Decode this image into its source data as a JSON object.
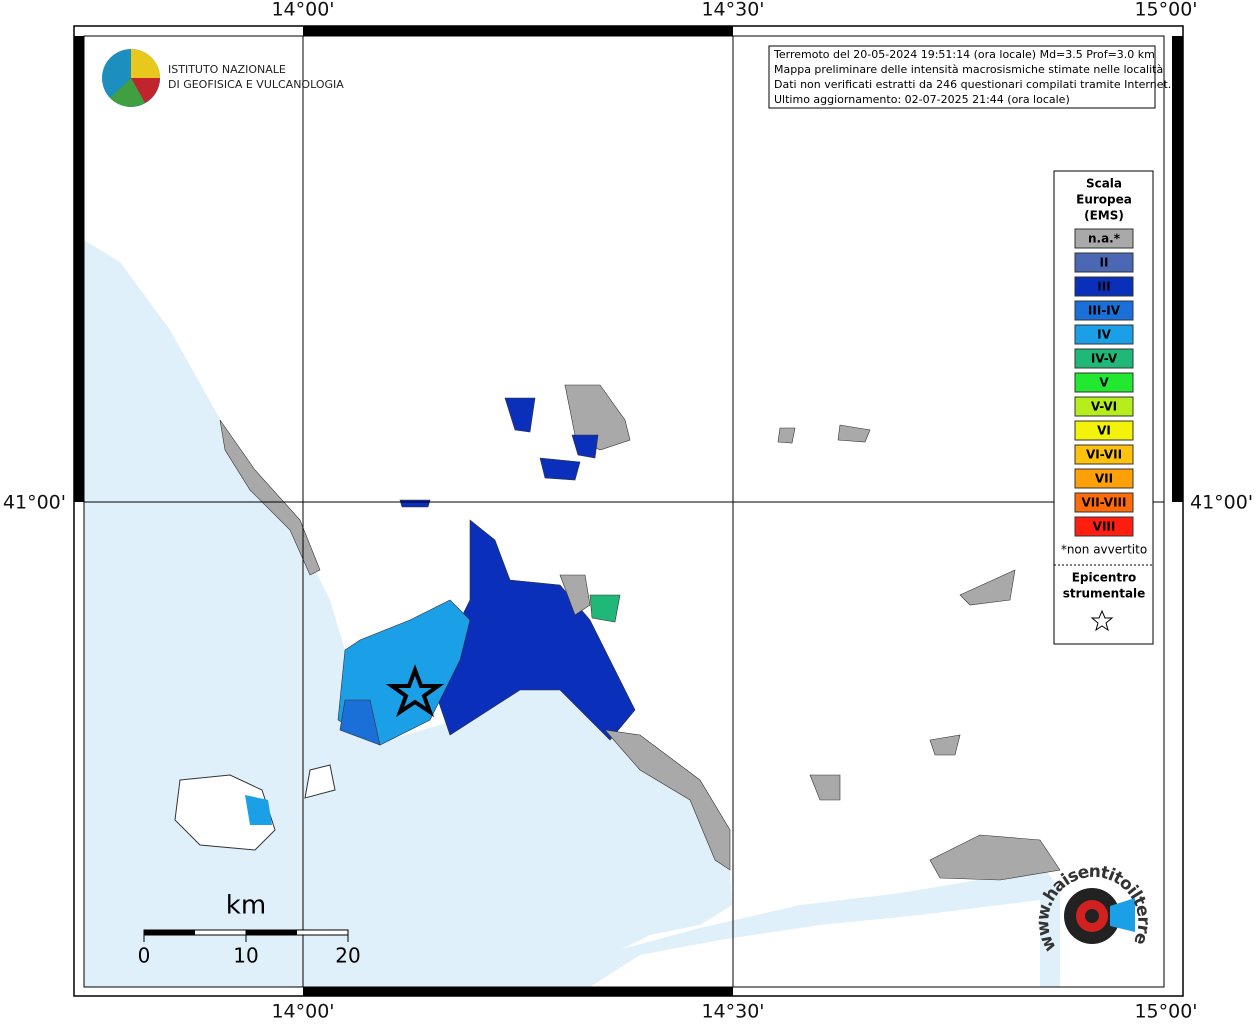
{
  "frame": {
    "top_labels": [
      "14°00'",
      "14°30'",
      "15°00'"
    ],
    "bottom_labels": [
      "14°00'",
      "14°30'",
      "15°00'"
    ],
    "left_labels": [
      "41°00'"
    ],
    "right_labels": [
      "41°00'"
    ]
  },
  "logo": {
    "line1": "ISTITUTO NAZIONALE",
    "line2": "DI GEOFISICA E VULCANOLOGIA"
  },
  "info_box": {
    "lines": [
      "Terremoto del 20-05-2024 19:51:14 (ora locale) Md=3.5 Prof=3.0 km",
      "Mappa preliminare delle intensità macrosismiche stimate nelle località",
      "Dati non verificati estratti da 246 questionari compilati tramite Internet.",
      "Ultimo aggiornamento: 02-07-2025 21:44 (ora locale)"
    ]
  },
  "legend": {
    "title": [
      "Scala",
      "Europea",
      "(EMS)"
    ],
    "items": [
      {
        "label": "n.a.*",
        "color": "#a9a9a9"
      },
      {
        "label": "II",
        "color": "#4a68b3"
      },
      {
        "label": "III",
        "color": "#0a2fba"
      },
      {
        "label": "III-IV",
        "color": "#1a6fd8"
      },
      {
        "label": "IV",
        "color": "#1ba0e8"
      },
      {
        "label": "IV-V",
        "color": "#20b878"
      },
      {
        "label": "V",
        "color": "#22e830"
      },
      {
        "label": "V-VI",
        "color": "#b5ee1c"
      },
      {
        "label": "VI",
        "color": "#f2f20a"
      },
      {
        "label": "VI-VII",
        "color": "#ffc20c"
      },
      {
        "label": "VII",
        "color": "#ffa008"
      },
      {
        "label": "VII-VIII",
        "color": "#ff6a0a"
      },
      {
        "label": "VIII",
        "color": "#ff1e10"
      }
    ],
    "note": "*non avvertito",
    "epicentre": [
      "Epicentro",
      "strumentale"
    ]
  },
  "scale_bar": {
    "unit": "km",
    "ticks": [
      0,
      10,
      20
    ]
  },
  "watermark": {
    "text": "www.haisentitoilterremoto.it"
  }
}
